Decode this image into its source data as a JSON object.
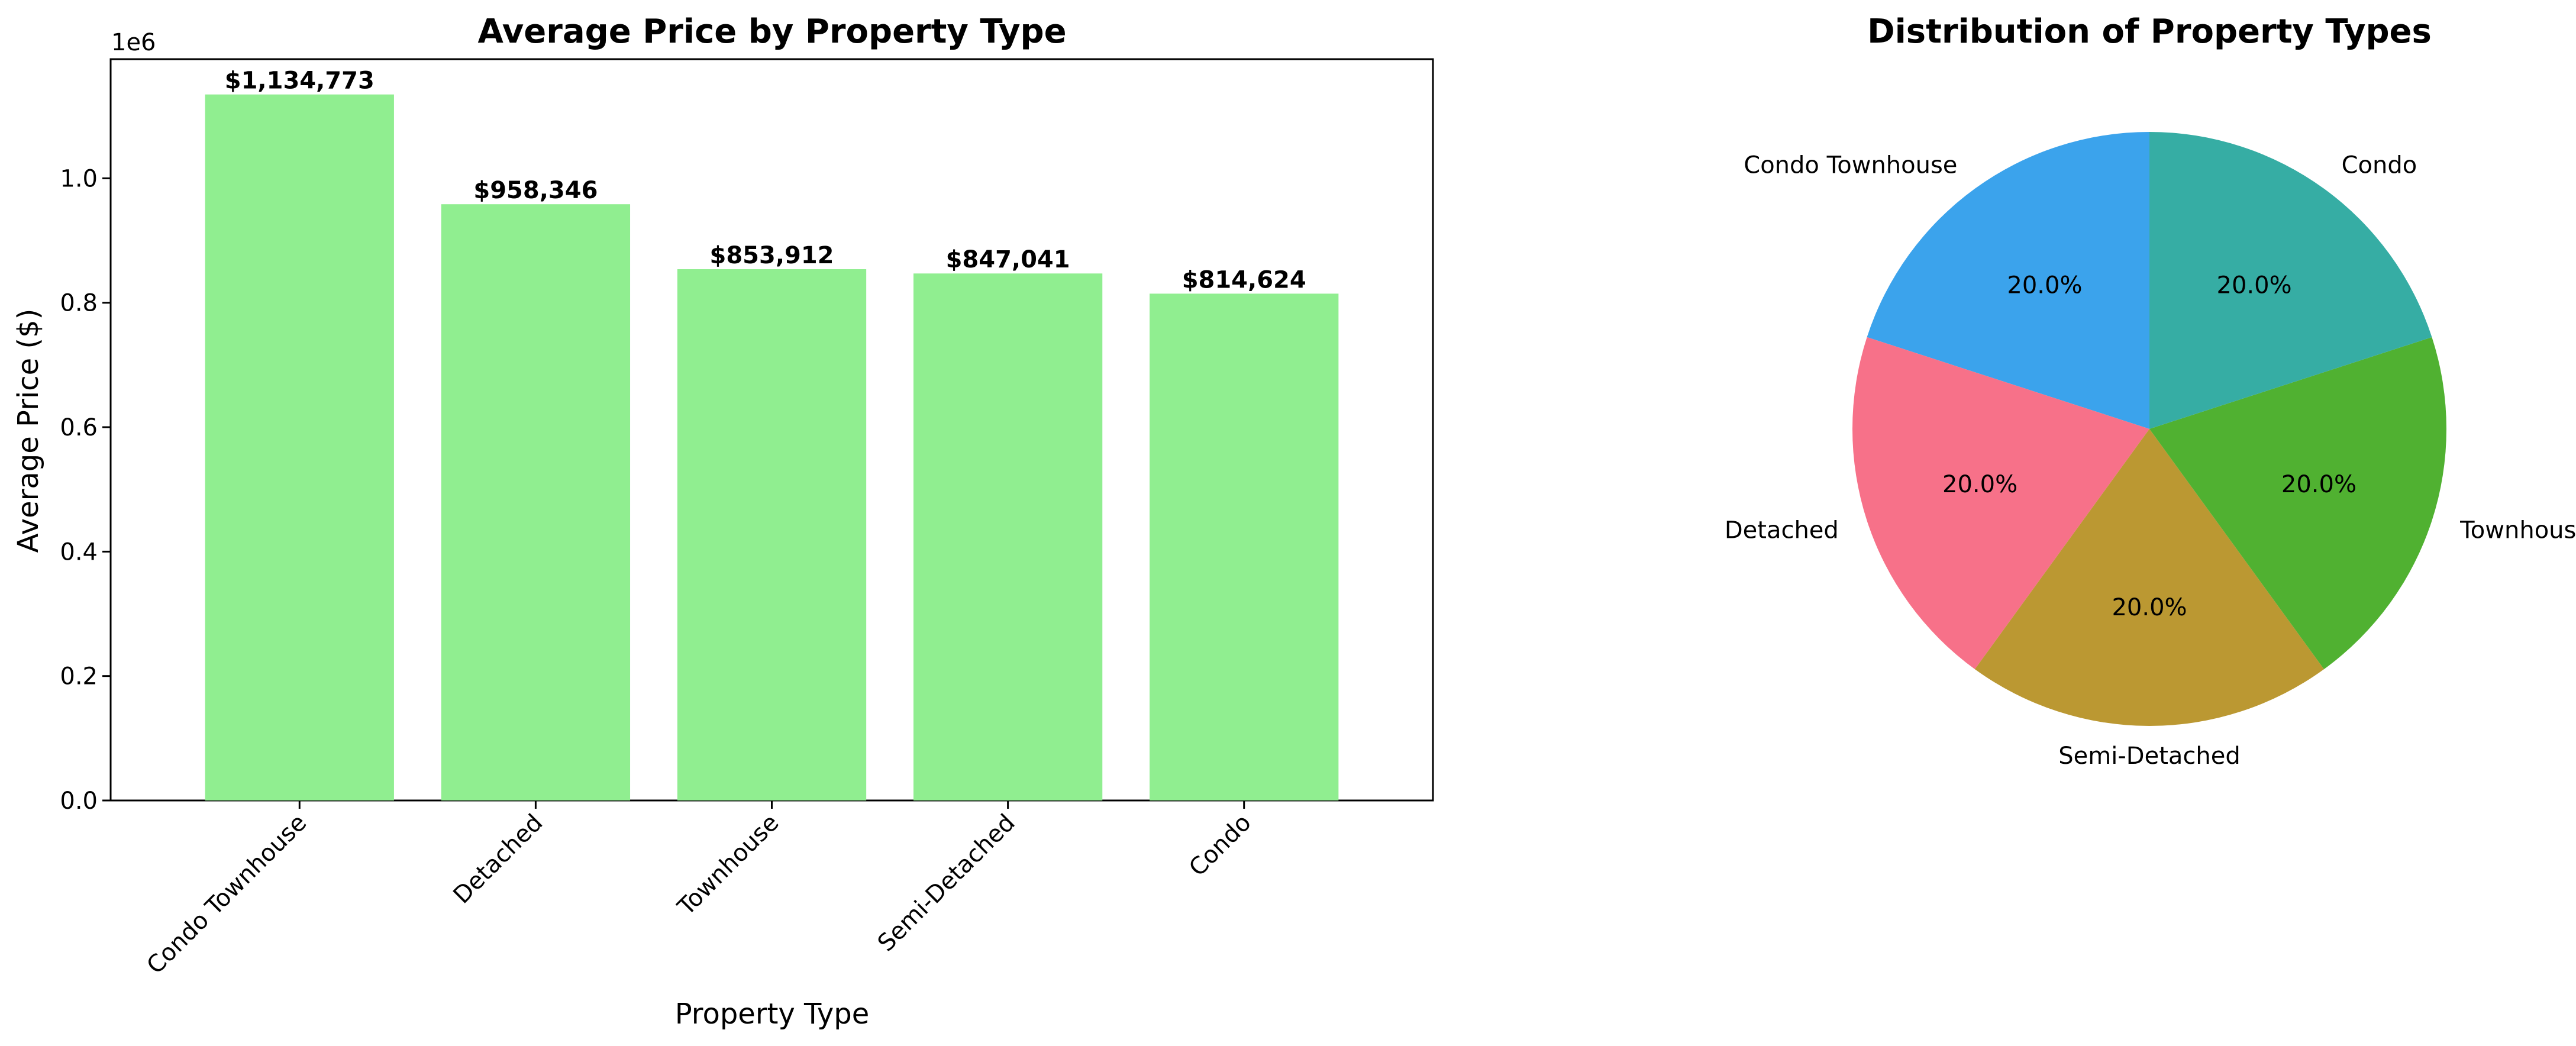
{
  "chart_data": [
    {
      "type": "bar",
      "title": "Average Price by Property Type",
      "xlabel": "Property Type",
      "ylabel": "Average Price ($)",
      "offset_text": "1e6",
      "categories": [
        "Condo Townhouse",
        "Detached",
        "Townhouse",
        "Semi-Detached",
        "Condo"
      ],
      "values": [
        1134773,
        958346,
        853912,
        847041,
        814624
      ],
      "value_labels": [
        "$1,134,773",
        "$958,346",
        "$853,912",
        "$847,041",
        "$814,624"
      ],
      "ylim": [
        0,
        1191512
      ],
      "yticks": [
        0,
        200000,
        400000,
        600000,
        800000,
        1000000
      ],
      "ytick_labels": [
        "0.0",
        "0.2",
        "0.4",
        "0.6",
        "0.8",
        "1.0"
      ],
      "bar_color": "#90ee90"
    },
    {
      "type": "pie",
      "title": "Distribution of Property Types",
      "labels": [
        "Condo Townhouse",
        "Detached",
        "Semi-Detached",
        "Townhouse",
        "Condo"
      ],
      "values": [
        20,
        20,
        20,
        20,
        20
      ],
      "pct_labels": [
        "20.0%",
        "20.0%",
        "20.0%",
        "20.0%",
        "20.0%"
      ],
      "colors": [
        "#3ba3ec",
        "#f77189",
        "#bb9832",
        "#50b131",
        "#36ada4"
      ]
    }
  ]
}
